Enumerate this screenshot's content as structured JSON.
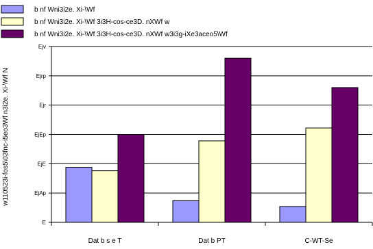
{
  "chart_data": {
    "type": "bar",
    "title": "",
    "xlabel": "",
    "ylabel": "w110523i-fos5\\03fnc-i5eo3Wf n3i2e. Xi-\\Wf N",
    "categories": [
      "Dat b s e T",
      "Dat b PT",
      "C-WT-Se"
    ],
    "ylim": [
      0,
      0.06
    ],
    "ytick_values": [
      0,
      0.01,
      0.02,
      0.03,
      0.04,
      0.05,
      0.06
    ],
    "ytick_labels": [
      "E",
      "EjAp",
      "EjE",
      "EjEp",
      "Ejr",
      "Ejrp",
      "Ejv"
    ],
    "grid": true,
    "legend_position": "top-left",
    "series": [
      {
        "name": "b nf Wni3i2e. Xi-\\Wf",
        "color": "#9999ff",
        "values": [
          0.0188,
          0.0074,
          0.0054
        ]
      },
      {
        "name": "b nf Wni3i2e. Xi-\\Wf 3i3H-cos-ce3D. nXWf w",
        "color": "#ffffcc",
        "values": [
          0.0176,
          0.0278,
          0.0322
        ]
      },
      {
        "name": "b nf Wni3i2e. Xi-\\Wf 3i3H-cos-ce3D. nXWf w3i3g-iXe3aceo5\\Wf",
        "color": "#660066",
        "values": [
          0.03,
          0.056,
          0.046
        ]
      }
    ]
  }
}
